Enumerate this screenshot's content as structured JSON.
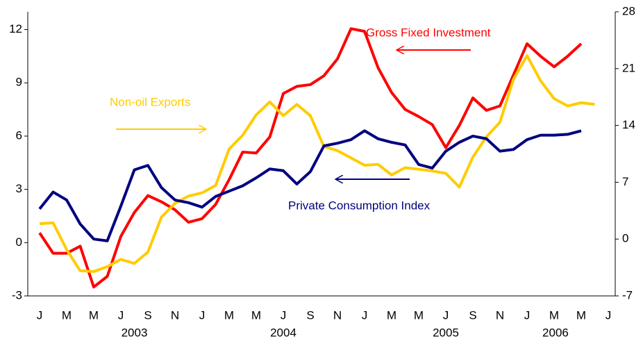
{
  "chart_data": {
    "type": "line",
    "categories": [
      "J",
      null,
      "M",
      null,
      "M",
      null,
      "J",
      null,
      "S",
      null,
      "N",
      null,
      "J",
      null,
      "M",
      null,
      "M",
      null,
      "J",
      null,
      "S",
      null,
      "N",
      null,
      "J",
      null,
      "M",
      null,
      "M",
      null,
      "J",
      null,
      "S",
      null,
      "N",
      null,
      "J",
      null,
      "M",
      null,
      "M",
      null,
      "J"
    ],
    "year_labels": [
      "2003",
      "2004",
      "2005",
      "2006"
    ],
    "ylim": [
      -3,
      13
    ],
    "yticks": [
      -3,
      0,
      3,
      6,
      9,
      12
    ],
    "y2lim": [
      -7,
      28
    ],
    "y2ticks": [
      -7,
      0,
      7,
      14,
      21,
      28
    ],
    "series": [
      {
        "name": "Gross Fixed Investment",
        "color": "#ff0000",
        "values": [
          0.55,
          -0.6,
          -0.6,
          -0.2,
          -2.5,
          -1.9,
          0.35,
          1.7,
          2.65,
          2.3,
          1.85,
          1.15,
          1.35,
          2.15,
          3.55,
          5.1,
          5.05,
          5.95,
          8.4,
          8.8,
          8.9,
          9.4,
          10.35,
          12.05,
          11.9,
          9.85,
          8.45,
          7.5,
          7.1,
          6.65,
          5.35,
          6.6,
          8.15,
          7.45,
          7.7,
          9.45,
          11.2,
          10.5,
          9.9,
          10.5,
          11.2,
          null,
          null
        ]
      },
      {
        "name": "Non-oil Exports",
        "color": "#ffcc00",
        "axis": "y2",
        "values": [
          1.9,
          2.0,
          -1.3,
          -3.9,
          -4.0,
          -3.4,
          -2.5,
          -3.0,
          -1.6,
          2.7,
          4.4,
          5.3,
          5.7,
          6.6,
          11.1,
          12.8,
          15.3,
          16.9,
          15.2,
          16.6,
          15.2,
          11.4,
          10.9,
          10.0,
          9.1,
          9.2,
          7.9,
          8.8,
          8.6,
          8.4,
          8.1,
          6.4,
          10.1,
          12.6,
          14.4,
          19.7,
          22.6,
          19.5,
          17.3,
          16.4,
          16.8,
          16.6,
          null
        ]
      },
      {
        "name": "Private Consumption Index",
        "color": "#000080",
        "values": [
          1.9,
          2.85,
          2.4,
          1.05,
          0.2,
          0.1,
          2.05,
          4.1,
          4.35,
          3.1,
          2.4,
          2.25,
          2.0,
          2.6,
          2.9,
          3.2,
          3.65,
          4.15,
          4.05,
          3.3,
          4.0,
          5.45,
          5.6,
          5.8,
          6.3,
          5.85,
          5.65,
          5.5,
          4.4,
          4.2,
          5.15,
          5.65,
          6.0,
          5.85,
          5.15,
          5.25,
          5.8,
          6.05,
          6.05,
          6.1,
          6.3,
          null,
          null
        ]
      }
    ]
  }
}
